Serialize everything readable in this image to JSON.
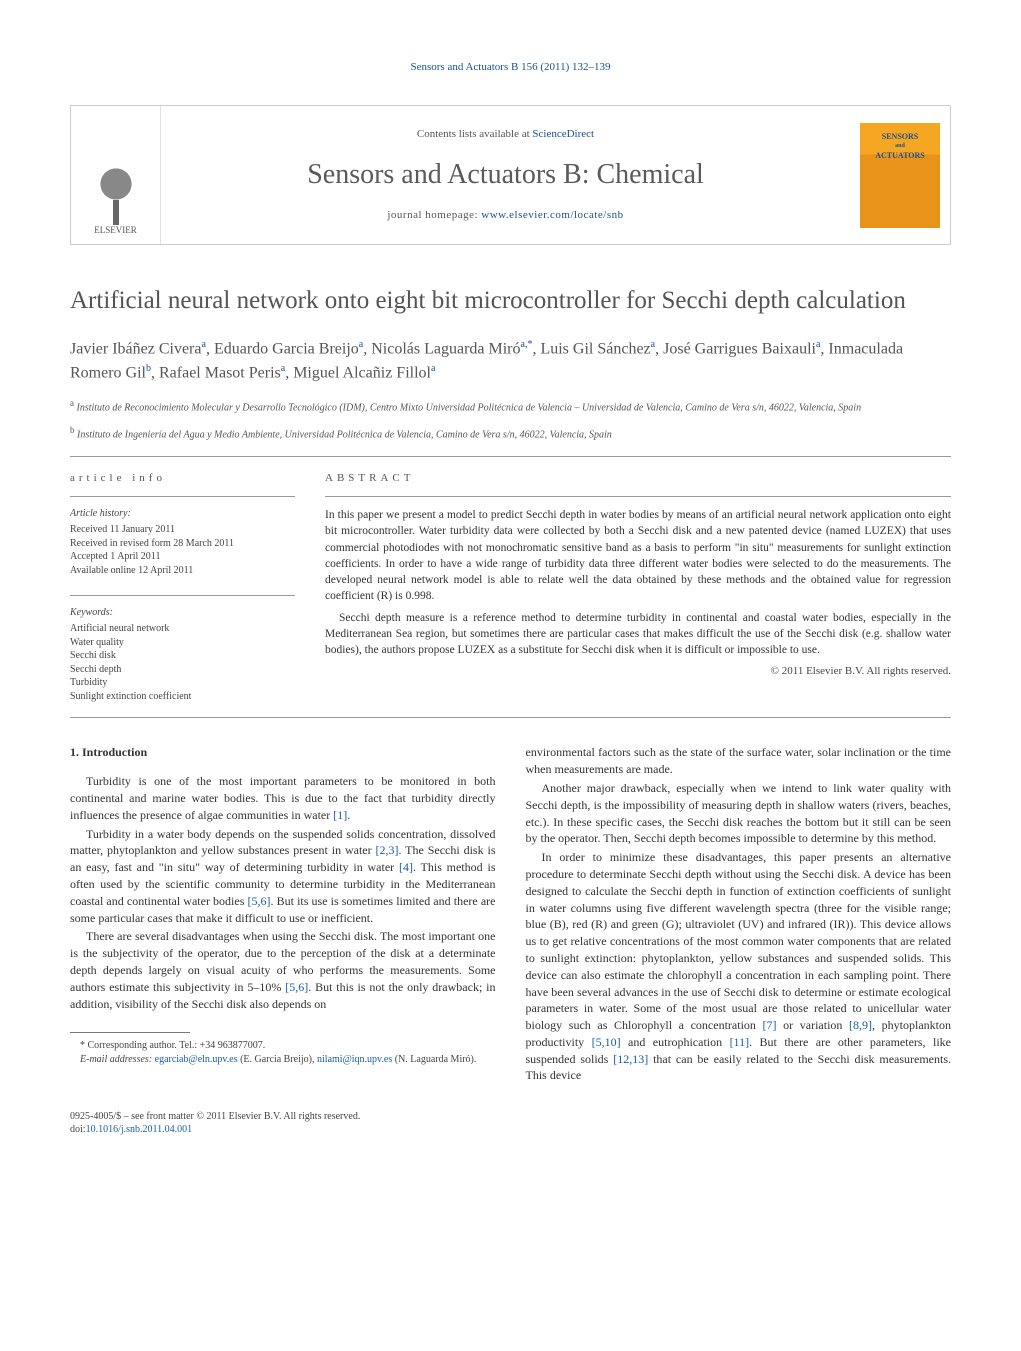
{
  "running_header": "Sensors and Actuators B 156 (2011) 132–139",
  "banner": {
    "publisher_name": "ELSEVIER",
    "contents_line_prefix": "Contents lists available at ",
    "contents_line_link": "ScienceDirect",
    "journal_title": "Sensors and Actuators B: Chemical",
    "homepage_prefix": "journal homepage: ",
    "homepage_link": "www.elsevier.com/locate/snb",
    "cover_line1": "SENSORS",
    "cover_line2_small": "and",
    "cover_line2": "ACTUATORS"
  },
  "article": {
    "title": "Artificial neural network onto eight bit microcontroller for Secchi depth calculation",
    "authors_html": "Javier Ibáñez Civera<sup>a</sup>, Eduardo Garcia Breijo<sup>a</sup>, Nicolás Laguarda Miró<sup>a,*</sup>, Luis Gil Sánchez<sup>a</sup>, José Garrigues Baixauli<sup>a</sup>, Inmaculada Romero Gil<sup>b</sup>, Rafael Masot Peris<sup>a</sup>, Miguel Alcañiz Fillol<sup>a</sup>",
    "affiliations": [
      {
        "sup": "a",
        "text": "Instituto de Reconocimiento Molecular y Desarrollo Tecnológico (IDM), Centro Mixto Universidad Politécnica de Valencia – Universidad de Valencia, Camino de Vera s/n, 46022, Valencia, Spain"
      },
      {
        "sup": "b",
        "text": "Instituto de Ingeniería del Agua y Medio Ambiente, Universidad Politécnica de Valencia, Camino de Vera s/n, 46022, Valencia, Spain"
      }
    ]
  },
  "info": {
    "heading": "article info",
    "history_label": "Article history:",
    "history": [
      "Received 11 January 2011",
      "Received in revised form 28 March 2011",
      "Accepted 1 April 2011",
      "Available online 12 April 2011"
    ],
    "keywords_label": "Keywords:",
    "keywords": [
      "Artificial neural network",
      "Water quality",
      "Secchi disk",
      "Secchi depth",
      "Turbidity",
      "Sunlight extinction coefficient"
    ]
  },
  "abstract": {
    "heading": "abstract",
    "paragraphs": [
      "In this paper we present a model to predict Secchi depth in water bodies by means of an artificial neural network application onto eight bit microcontroller. Water turbidity data were collected by both a Secchi disk and a new patented device (named LUZEX) that uses commercial photodiodes with not monochromatic sensitive band as a basis to perform \"in situ\" measurements for sunlight extinction coefficients. In order to have a wide range of turbidity data three different water bodies were selected to do the measurements. The developed neural network model is able to relate well the data obtained by these methods and the obtained value for regression coefficient (R) is 0.998.",
      "Secchi depth measure is a reference method to determine turbidity in continental and coastal water bodies, especially in the Mediterranean Sea region, but sometimes there are particular cases that makes difficult the use of the Secchi disk (e.g. shallow water bodies), the authors propose LUZEX as a substitute for Secchi disk when it is difficult or impossible to use."
    ],
    "copyright": "© 2011 Elsevier B.V. All rights reserved."
  },
  "body": {
    "section_number": "1.",
    "section_title": "Introduction",
    "left_paragraphs": [
      "Turbidity is one of the most important parameters to be monitored in both continental and marine water bodies. This is due to the fact that turbidity directly influences the presence of algae communities in water [1].",
      "Turbidity in a water body depends on the suspended solids concentration, dissolved matter, phytoplankton and yellow substances present in water [2,3]. The Secchi disk is an easy, fast and \"in situ\" way of determining turbidity in water [4]. This method is often used by the scientific community to determine turbidity in the Mediterranean coastal and continental water bodies [5,6]. But its use is sometimes limited and there are some particular cases that make it difficult to use or inefficient.",
      "There are several disadvantages when using the Secchi disk. The most important one is the subjectivity of the operator, due to the perception of the disk at a determinate depth depends largely on visual acuity of who performs the measurements. Some authors estimate this subjectivity in 5–10% [5,6]. But this is not the only drawback; in addition, visibility of the Secchi disk also depends on"
    ],
    "right_paragraphs": [
      "environmental factors such as the state of the surface water, solar inclination or the time when measurements are made.",
      "Another major drawback, especially when we intend to link water quality with Secchi depth, is the impossibility of measuring depth in shallow waters (rivers, beaches, etc.). In these specific cases, the Secchi disk reaches the bottom but it still can be seen by the operator. Then, Secchi depth becomes impossible to determine by this method.",
      "In order to minimize these disadvantages, this paper presents an alternative procedure to determinate Secchi depth without using the Secchi disk. A device has been designed to calculate the Secchi depth in function of extinction coefficients of sunlight in water columns using five different wavelength spectra (three for the visible range; blue (B), red (R) and green (G); ultraviolet (UV) and infrared (IR)). This device allows us to get relative concentrations of the most common water components that are related to sunlight extinction: phytoplankton, yellow substances and suspended solids. This device can also estimate the chlorophyll a concentration in each sampling point. There have been several advances in the use of Secchi disk to determine or estimate ecological parameters in water. Some of the most usual are those related to unicellular water biology such as Chlorophyll a concentration [7] or variation [8,9], phytoplankton productivity [5,10] and eutrophication [11]. But there are other parameters, like suspended solids [12,13] that can be easily related to the Secchi disk measurements. This device"
    ]
  },
  "footnotes": {
    "corresponding": "* Corresponding author. Tel.: +34 963877007.",
    "email_label": "E-mail addresses:",
    "emails": [
      {
        "addr": "egarciab@eln.upv.es",
        "who": "(E. Garcia Breijo)"
      },
      {
        "addr": "nilami@iqn.upv.es",
        "who": "(N. Laguarda Miró)"
      }
    ]
  },
  "footer": {
    "line1": "0925-4005/$ – see front matter © 2011 Elsevier B.V. All rights reserved.",
    "doi_label": "doi:",
    "doi": "10.1016/j.snb.2011.04.001"
  },
  "colors": {
    "link": "#1a5da8",
    "header_link": "#1a4f8f",
    "text": "#333333",
    "muted": "#555555",
    "rule": "#999999",
    "cover_bg": "#f5a623"
  },
  "typography": {
    "body_pt": 12,
    "title_pt": 25,
    "journal_title_pt": 28,
    "authors_pt": 16,
    "small_pt": 10
  }
}
